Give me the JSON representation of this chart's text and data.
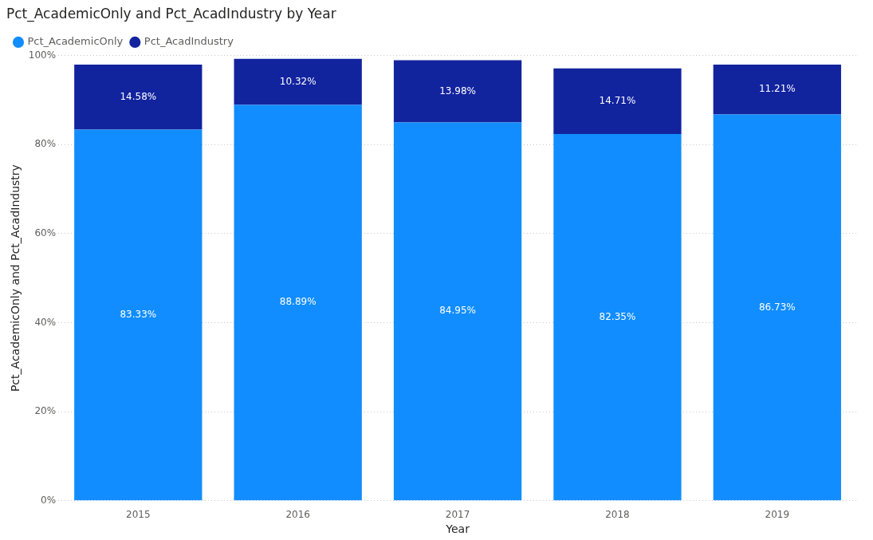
{
  "chart_data": {
    "type": "bar",
    "title": "Pct_AcademicOnly and Pct_AcadIndustry by Year",
    "xlabel": "Year",
    "ylabel": "Pct_AcademicOnly and Pct_AcadIndustry",
    "categories": [
      "2015",
      "2016",
      "2017",
      "2018",
      "2019"
    ],
    "stacked": true,
    "series": [
      {
        "name": "Pct_AcademicOnly",
        "color": "#118dff",
        "values": [
          83.33,
          88.89,
          84.95,
          82.35,
          86.73
        ],
        "value_labels": [
          "83.33%",
          "88.89%",
          "84.95%",
          "82.35%",
          "86.73%"
        ]
      },
      {
        "name": "Pct_AcadIndustry",
        "color": "#12239e",
        "values": [
          14.58,
          10.32,
          13.98,
          14.71,
          11.21
        ],
        "value_labels": [
          "14.58%",
          "10.32%",
          "13.98%",
          "14.71%",
          "11.21%"
        ]
      }
    ],
    "ylim": [
      0,
      100
    ],
    "yticks": [
      {
        "value": 0,
        "label": "0%"
      },
      {
        "value": 20,
        "label": "20%"
      },
      {
        "value": 40,
        "label": "40%"
      },
      {
        "value": 60,
        "label": "60%"
      },
      {
        "value": 80,
        "label": "80%"
      },
      {
        "value": 100,
        "label": "100%"
      }
    ],
    "grid": "y",
    "legend": "top left"
  }
}
